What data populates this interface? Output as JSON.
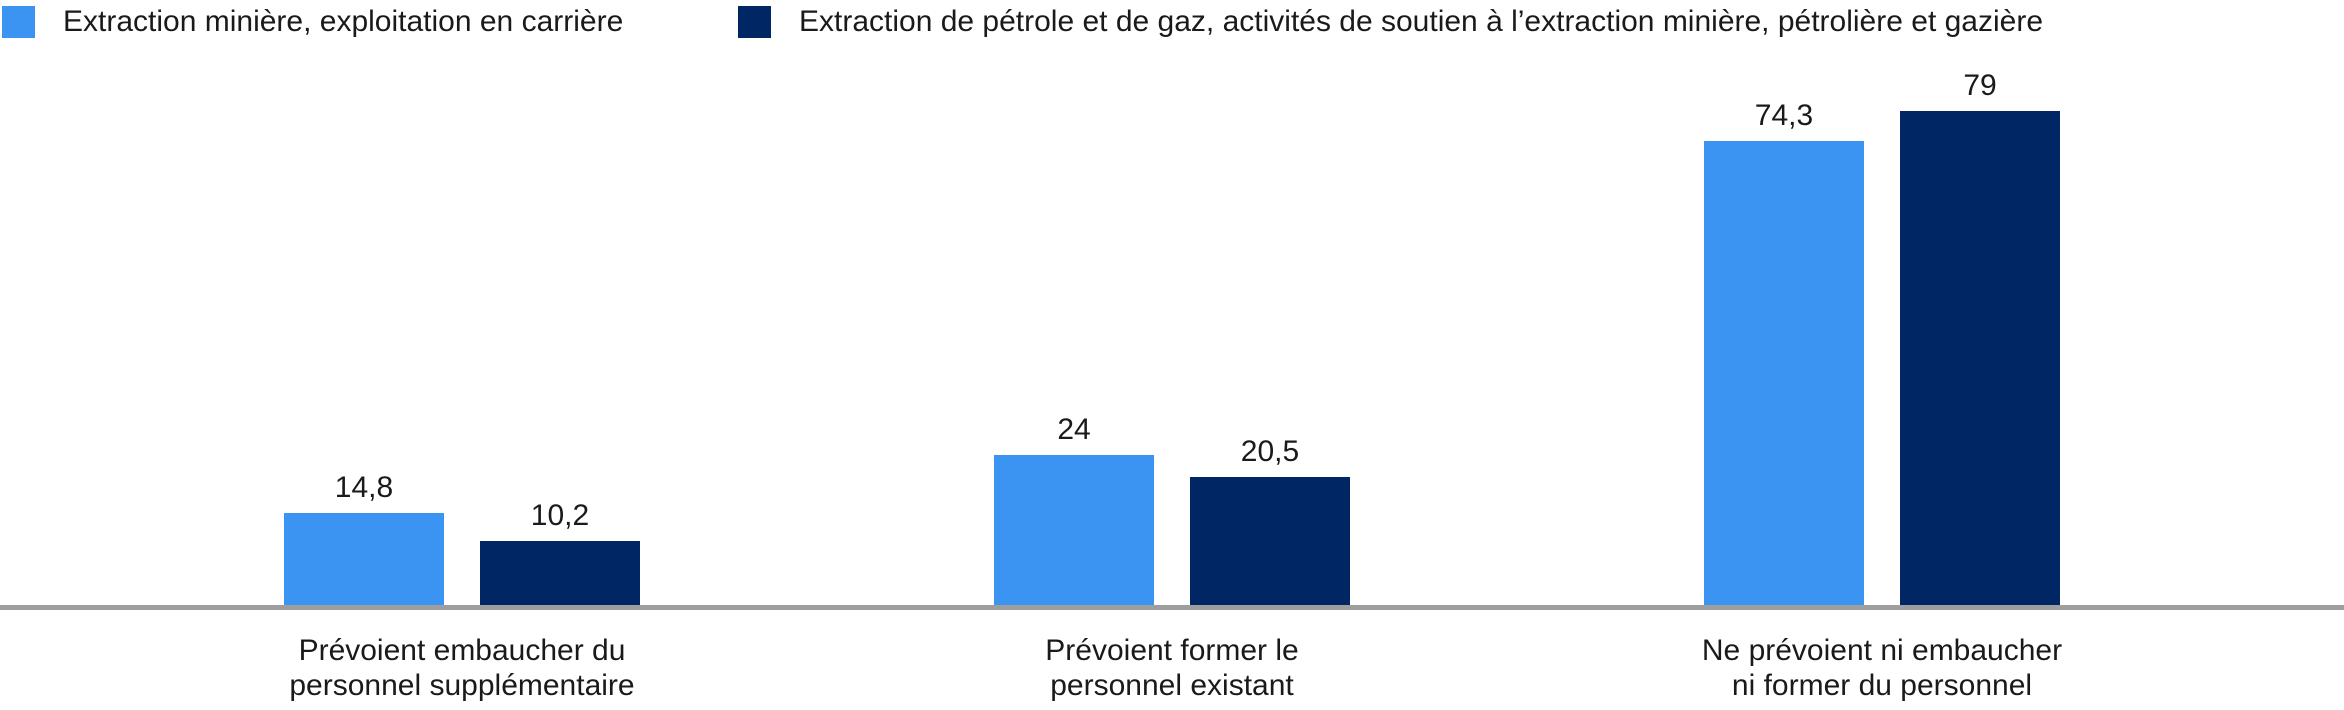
{
  "chart": {
    "background_color": "#ffffff",
    "axis_line_color": "#9e9e9e",
    "text_color": "#1a1a1a"
  },
  "chart_data": {
    "type": "bar",
    "title": "",
    "xlabel": "",
    "ylabel": "",
    "y_axis_visible": false,
    "gridlines": false,
    "legend_position": "top-left",
    "value_labels_shown": true,
    "ylim": [
      0,
      100
    ],
    "categories": [
      "Prévoient embaucher du\npersonnel supplémentaire",
      "Prévoient former le\npersonnel existant",
      "Ne prévoient ni embaucher\nni former du personnel"
    ],
    "series": [
      {
        "name": "Extraction minière, exploitation en carrière",
        "color": "#3b94f1",
        "values": [
          14.8,
          24,
          74.3
        ],
        "value_labels": [
          "14,8",
          "24",
          "74,3"
        ]
      },
      {
        "name": "Extraction de pétrole et de gaz, activités de soutien à l’extraction minière, pétrolière et gazière",
        "color": "#002664",
        "values": [
          10.2,
          20.5,
          79
        ],
        "value_labels": [
          "10,2",
          "20,5",
          "79"
        ]
      }
    ]
  }
}
